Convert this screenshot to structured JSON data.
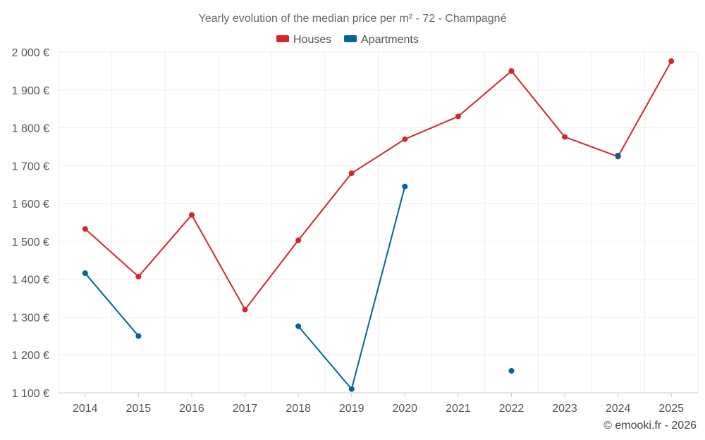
{
  "chart_data": {
    "type": "line",
    "title": "Yearly evolution of the median price per m² - 72 - Champagné",
    "categories": [
      "2014",
      "2015",
      "2016",
      "2017",
      "2018",
      "2019",
      "2020",
      "2021",
      "2022",
      "2023",
      "2024",
      "2025"
    ],
    "series": [
      {
        "name": "Houses",
        "color": "#d62728",
        "values": [
          1533,
          1407,
          1570,
          1320,
          1503,
          1680,
          1770,
          1830,
          1950,
          1776,
          1724,
          1976
        ]
      },
      {
        "name": "Apartments",
        "color": "#006699",
        "values": [
          1416,
          1250,
          null,
          null,
          1276,
          1110,
          1645,
          null,
          1158,
          null,
          1727,
          null
        ]
      }
    ],
    "ylim": [
      1100,
      2000
    ],
    "yticks": [
      1100,
      1200,
      1300,
      1400,
      1500,
      1600,
      1700,
      1800,
      1900,
      2000
    ],
    "ytick_labels": [
      "1 100 €",
      "1 200 €",
      "1 300 €",
      "1 400 €",
      "1 500 €",
      "1 600 €",
      "1 700 €",
      "1 800 €",
      "1 900 €",
      "2 000 €"
    ],
    "xlabel": "",
    "ylabel": "",
    "grid": true,
    "legend_position": "top-center"
  },
  "credit": "© emooki.fr - 2026"
}
